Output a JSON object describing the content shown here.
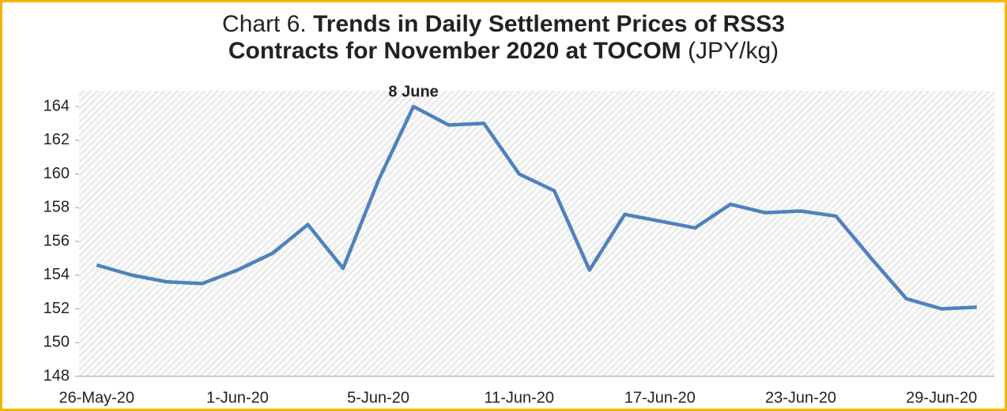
{
  "chart_data": {
    "type": "line",
    "title": {
      "prefix": "Chart 6.",
      "main": [
        "Trends in Daily Settlement Prices of RSS3",
        "Contracts for November 2020 at TOCOM"
      ],
      "unit": "(JPY/kg)"
    },
    "annotation": "8 June",
    "categories": [
      "26-May-20",
      null,
      null,
      null,
      "1-Jun-20",
      null,
      null,
      null,
      "5-Jun-20",
      null,
      null,
      null,
      "11-Jun-20",
      null,
      null,
      null,
      "17-Jun-20",
      null,
      null,
      null,
      "23-Jun-20",
      null,
      null,
      null,
      "29-Jun-20",
      null
    ],
    "series": [
      {
        "color": "#4f81bd",
        "values": [
          154.6,
          154.0,
          153.6,
          153.5,
          154.3,
          155.3,
          157.0,
          154.4,
          159.6,
          164.0,
          162.9,
          163.0,
          160.0,
          159.0,
          154.3,
          157.6,
          157.2,
          156.8,
          158.2,
          157.7,
          157.8,
          157.5,
          155.0,
          152.6,
          152.0,
          152.1
        ]
      }
    ],
    "ylim": [
      148,
      164
    ],
    "yticks": [
      148,
      150,
      152,
      154,
      156,
      158,
      160,
      162,
      164
    ]
  }
}
